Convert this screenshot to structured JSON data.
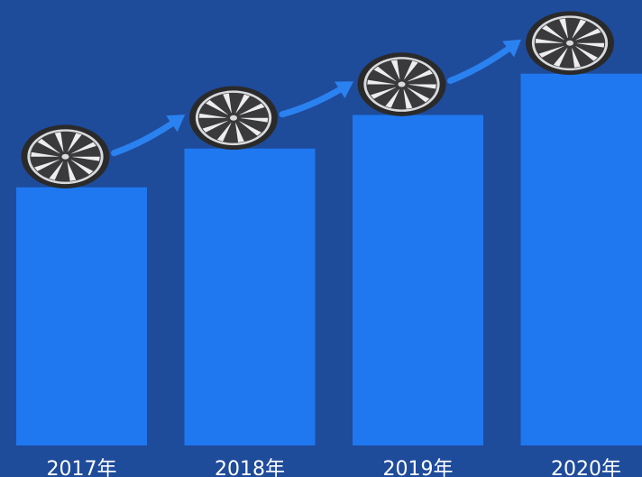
{
  "chart_data": {
    "type": "bar",
    "categories": [
      "2017年",
      "2018年",
      "2019年",
      "2020年"
    ],
    "values": [
      100,
      115,
      128,
      144
    ],
    "title": "",
    "xlabel": "",
    "ylabel": "",
    "ylim": [
      0,
      146
    ],
    "grid": false,
    "legend": "none",
    "decorations": {
      "marker_icon": "alloy-wheel-icon",
      "connector_icon": "rising-arrow-icon"
    }
  },
  "colors": {
    "background": "#1f4b9b",
    "bar": "#1f78f0",
    "arrow": "#2a82f0",
    "label": "#ffffff",
    "tire": "#2a2a2a",
    "rim": "#d9dadd",
    "spoke_dark": "#3a3a3c",
    "spoke_light": "#ededf0"
  }
}
